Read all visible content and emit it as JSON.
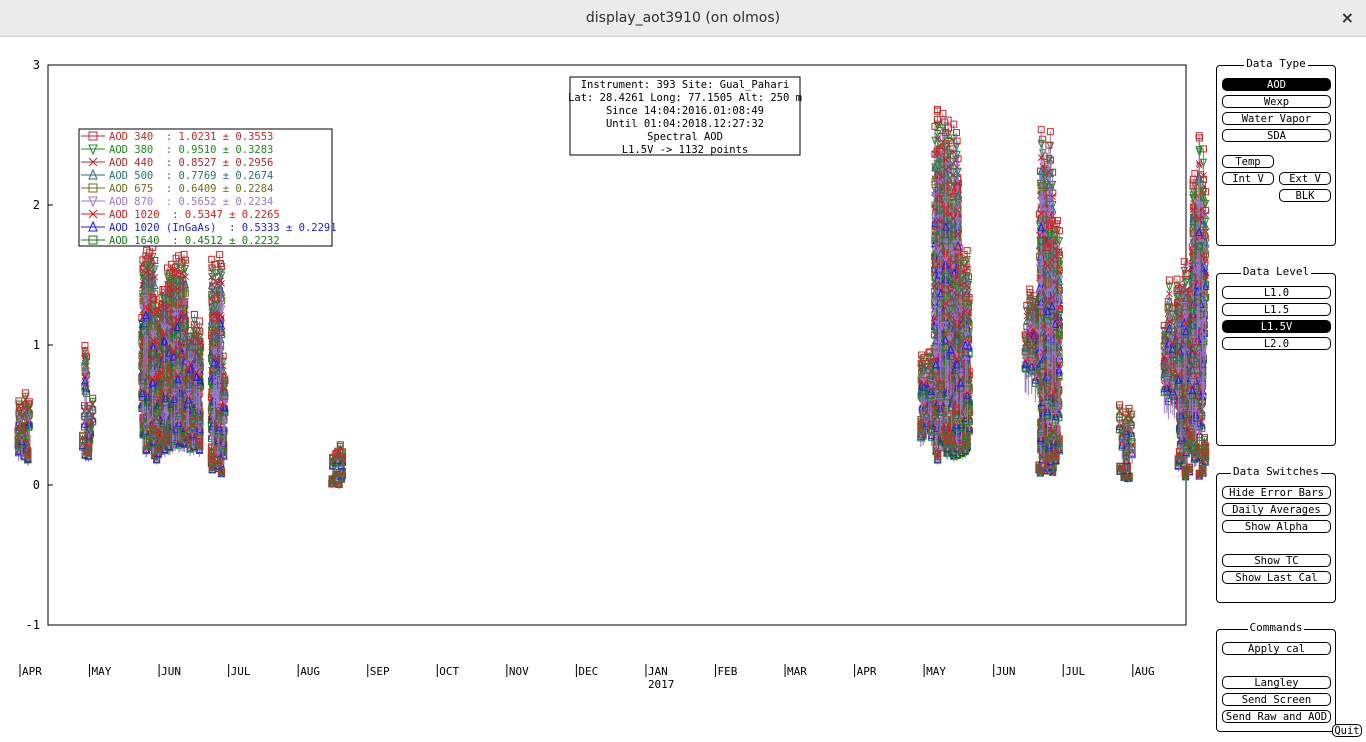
{
  "window": {
    "title": "display_aot3910 (on olmos)",
    "close_glyph": "×"
  },
  "info_box": {
    "lines": [
      "Instrument: 393 Site: Gual_Pahari",
      "Lat: 28.4261 Long: 77.1505 Alt: 250 m",
      "Since 14:04:2016.01:08:49",
      "Until 01:04:2018.12:27:32",
      "Spectral AOD",
      "L1.5V -> 1132 points"
    ]
  },
  "chart_data": {
    "type": "scatter",
    "title": "",
    "xlabel": "",
    "ylabel": "",
    "ylim": [
      -1,
      3
    ],
    "yticks": [
      "3",
      "2",
      "1",
      "0",
      "-1"
    ],
    "x_ticks": [
      {
        "label": "APR"
      },
      {
        "label": "MAY"
      },
      {
        "label": "JUN"
      },
      {
        "label": "JUL"
      },
      {
        "label": "AUG"
      },
      {
        "label": "SEP"
      },
      {
        "label": "OCT"
      },
      {
        "label": "NOV"
      },
      {
        "label": "DEC"
      },
      {
        "label": "JAN",
        "sublabel": "2017"
      },
      {
        "label": "FEB"
      },
      {
        "label": "MAR"
      },
      {
        "label": "APR"
      },
      {
        "label": "MAY"
      },
      {
        "label": "JUN"
      },
      {
        "label": "JUL"
      },
      {
        "label": "AUG"
      }
    ],
    "legend": [
      {
        "label": "AOD 340  : 1.0231 ± 0.3553",
        "color": "#c82828",
        "marker": "square"
      },
      {
        "label": "AOD 380  : 0.9510 ± 0.3283",
        "color": "#1f8c1f",
        "marker": "tri-down"
      },
      {
        "label": "AOD 440  : 0.8527 ± 0.2956",
        "color": "#b42a2a",
        "marker": "x"
      },
      {
        "label": "AOD 500  : 0.7769 ± 0.2674",
        "color": "#2a6e6e",
        "marker": "tri-up"
      },
      {
        "label": "AOD 675  : 0.6409 ± 0.2284",
        "color": "#6e6e1e",
        "marker": "square"
      },
      {
        "label": "AOD 870  : 0.5652 ± 0.2234",
        "color": "#9a78d0",
        "marker": "tri-down"
      },
      {
        "label": "AOD 1020  : 0.5347 ± 0.2265",
        "color": "#d21e1e",
        "marker": "x"
      },
      {
        "label": "AOD 1020 (InGaAs)  : 0.5333 ± 0.2291",
        "color": "#1e1ee6",
        "marker": "tri-up"
      },
      {
        "label": "AOD 1640  : 0.4512 ± 0.2232",
        "color": "#1a7a1a",
        "marker": "square"
      }
    ],
    "clusters": [
      {
        "month": 0.05,
        "low": 0.15,
        "high": 0.66,
        "n": 18
      },
      {
        "month": 0.95,
        "low": 0.25,
        "high": 1.04,
        "n": 14
      },
      {
        "month": 1.85,
        "low": 0.3,
        "high": 1.7,
        "n": 80
      },
      {
        "month": 2.0,
        "low": 0.22,
        "high": 1.35,
        "n": 60
      },
      {
        "month": 2.15,
        "low": 0.3,
        "high": 1.6,
        "n": 70
      },
      {
        "month": 2.28,
        "low": 0.35,
        "high": 1.65,
        "n": 70
      },
      {
        "month": 2.5,
        "low": 0.3,
        "high": 1.25,
        "n": 45
      },
      {
        "month": 2.85,
        "low": 0.1,
        "high": 1.75,
        "n": 60
      },
      {
        "month": 4.55,
        "low": 0.0,
        "high": 0.3,
        "n": 12
      },
      {
        "month": 13.05,
        "low": 0.4,
        "high": 1.0,
        "n": 25
      },
      {
        "month": 13.25,
        "low": 0.22,
        "high": 2.75,
        "n": 100
      },
      {
        "month": 13.4,
        "low": 0.25,
        "high": 2.65,
        "n": 80
      },
      {
        "month": 13.55,
        "low": 0.28,
        "high": 1.7,
        "n": 60
      },
      {
        "month": 14.55,
        "low": 0.9,
        "high": 1.45,
        "n": 20
      },
      {
        "month": 14.75,
        "low": 0.1,
        "high": 2.55,
        "n": 90
      },
      {
        "month": 14.85,
        "low": 0.15,
        "high": 1.95,
        "n": 60
      },
      {
        "month": 15.9,
        "low": 0.05,
        "high": 0.58,
        "n": 18
      },
      {
        "month": 16.55,
        "low": 0.6,
        "high": 1.52,
        "n": 20
      },
      {
        "month": 16.75,
        "low": 0.05,
        "high": 1.6,
        "n": 60
      },
      {
        "month": 16.95,
        "low": 0.05,
        "high": 2.5,
        "n": 80
      }
    ]
  },
  "panels": {
    "data_type": {
      "title": "Data Type",
      "buttons": {
        "aod": "AOD",
        "wexp": "Wexp",
        "water_vapor": "Water Vapor",
        "sda": "SDA",
        "temp": "Temp",
        "int_v": "Int V",
        "ext_v": "Ext V",
        "blk": "BLK"
      },
      "selected": "AOD"
    },
    "data_level": {
      "title": "Data Level",
      "buttons": {
        "l10": "L1.0",
        "l15": "L1.5",
        "l15v": "L1.5V",
        "l20": "L2.0"
      },
      "selected": "L1.5V"
    },
    "data_switches": {
      "title": "Data Switches",
      "buttons": {
        "hide_error_bars": "Hide Error Bars",
        "daily_averages": "Daily Averages",
        "show_alpha": "Show Alpha",
        "show_tc": "Show TC",
        "show_last_cal": "Show Last Cal"
      }
    },
    "commands": {
      "title": "Commands",
      "buttons": {
        "apply_cal": "Apply cal",
        "langley": "Langley",
        "send_screen": "Send Screen",
        "send_raw_aod": "Send Raw and AOD"
      }
    }
  },
  "quit_label": "Quit"
}
